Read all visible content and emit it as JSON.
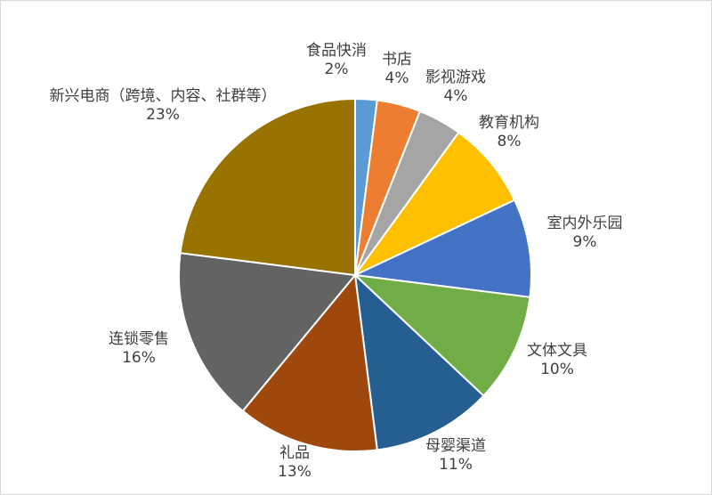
{
  "chart_data": {
    "type": "pie",
    "title": "",
    "start_angle_deg": 0,
    "direction": "clockwise",
    "slices": [
      {
        "label": "食品快消",
        "value": 2,
        "value_label": "2%",
        "color": "#5B9BD5"
      },
      {
        "label": "书店",
        "value": 4,
        "value_label": "4%",
        "color": "#ED7D31"
      },
      {
        "label": "影视游戏",
        "value": 4,
        "value_label": "4%",
        "color": "#A5A5A5"
      },
      {
        "label": "教育机构",
        "value": 8,
        "value_label": "8%",
        "color": "#FFC000"
      },
      {
        "label": "室内外乐园",
        "value": 9,
        "value_label": "9%",
        "color": "#4472C4"
      },
      {
        "label": "文体文具",
        "value": 10,
        "value_label": "10%",
        "color": "#70AD47"
      },
      {
        "label": "母婴渠道",
        "value": 11,
        "value_label": "11%",
        "color": "#255E91"
      },
      {
        "label": "礼品",
        "value": 13,
        "value_label": "13%",
        "color": "#9E480E"
      },
      {
        "label": "连锁零售",
        "value": 16,
        "value_label": "16%",
        "color": "#636363"
      },
      {
        "label": "新兴电商（跨境、内容、社群等）",
        "value": 23,
        "value_label": "23%",
        "color": "#997300"
      }
    ]
  }
}
